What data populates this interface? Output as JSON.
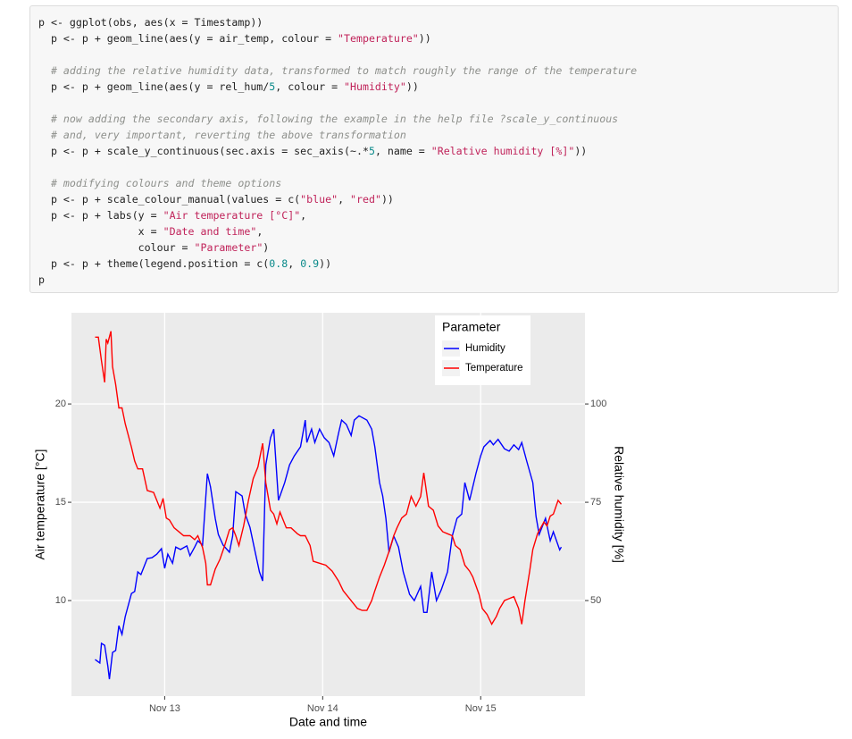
{
  "code": {
    "blocks": [
      [
        "p <- ggplot(obs, aes(x = Timestamp))",
        "  p <- p + geom_line(aes(y = air_temp, colour = \"Temperature\"))"
      ],
      [
        "  # adding the relative humidity data, transformed to match roughly the range of the temperature",
        "  p <- p + geom_line(aes(y = rel_hum/5, colour = \"Humidity\"))"
      ],
      [
        "  # now adding the secondary axis, following the example in the help file ?scale_y_continuous",
        "  # and, very important, reverting the above transformation",
        "  p <- p + scale_y_continuous(sec.axis = sec_axis(~.*5, name = \"Relative humidity [%]\"))"
      ],
      [
        "  # modifying colours and theme options",
        "  p <- p + scale_colour_manual(values = c(\"blue\", \"red\"))",
        "  p <- p + labs(y = \"Air temperature [°C]\",",
        "                x = \"Date and time\",",
        "                colour = \"Parameter\")",
        "  p <- p + theme(legend.position = c(0.8, 0.9))",
        "p"
      ]
    ]
  },
  "chart_data": {
    "type": "line",
    "xlabel": "Date and time",
    "ylabel": "Air temperature [°C]",
    "y2label": "Relative humidity [%]",
    "legend_title": "Parameter",
    "legend_position": "upper right",
    "grid": true,
    "xlim": [
      12.41,
      15.66
    ],
    "xticks": [
      {
        "value": 13,
        "label": "Nov 13"
      },
      {
        "value": 14,
        "label": "Nov 14"
      },
      {
        "value": 15,
        "label": "Nov 15"
      }
    ],
    "ylim": [
      5.14,
      24.64
    ],
    "yticks": [
      10,
      15,
      20
    ],
    "y2lim": [
      25.7,
      123.2
    ],
    "y2ticks": [
      50,
      75,
      100
    ],
    "series": [
      {
        "name": "Humidity",
        "color": "blue",
        "axis": "y2",
        "x": [
          12.56,
          12.59,
          12.6,
          12.62,
          12.64,
          12.65,
          12.67,
          12.69,
          12.71,
          12.73,
          12.75,
          12.79,
          12.81,
          12.83,
          12.85,
          12.89,
          12.92,
          12.95,
          12.98,
          13.0,
          13.02,
          13.05,
          13.07,
          13.1,
          13.14,
          13.16,
          13.19,
          13.21,
          13.24,
          13.27,
          13.29,
          13.32,
          13.34,
          13.37,
          13.41,
          13.43,
          13.45,
          13.49,
          13.51,
          13.54,
          13.57,
          13.6,
          13.62,
          13.64,
          13.67,
          13.69,
          13.72,
          13.76,
          13.79,
          13.82,
          13.86,
          13.89,
          13.9,
          13.93,
          13.95,
          13.98,
          14.01,
          14.04,
          14.07,
          14.1,
          14.12,
          14.15,
          14.18,
          14.2,
          14.23,
          14.28,
          14.31,
          14.33,
          14.36,
          14.38,
          14.4,
          14.42,
          14.45,
          14.48,
          14.51,
          14.55,
          14.58,
          14.62,
          14.64,
          14.66,
          14.69,
          14.72,
          14.75,
          14.79,
          14.82,
          14.85,
          14.88,
          14.9,
          14.93,
          14.97,
          15.0,
          15.02,
          15.06,
          15.08,
          15.11,
          15.15,
          15.18,
          15.21,
          15.24,
          15.26,
          15.29,
          15.33,
          15.35,
          15.37,
          15.41,
          15.44,
          15.46,
          15.5,
          15.51
        ],
        "values": [
          35.0,
          34.1,
          39.1,
          38.6,
          33.4,
          30.0,
          36.8,
          37.3,
          43.6,
          41.4,
          45.9,
          51.8,
          52.3,
          57.3,
          56.6,
          60.7,
          60.9,
          61.8,
          63.2,
          58.2,
          61.8,
          59.5,
          63.6,
          63.0,
          63.9,
          61.4,
          63.6,
          65.2,
          64.1,
          82.3,
          78.9,
          70.9,
          66.8,
          64.1,
          62.3,
          66.4,
          77.7,
          76.6,
          72.0,
          68.6,
          62.9,
          57.3,
          55.0,
          84.5,
          91.4,
          93.6,
          75.5,
          80.0,
          84.5,
          86.8,
          89.1,
          95.9,
          90.2,
          93.6,
          90.2,
          93.6,
          91.4,
          90.2,
          86.8,
          92.5,
          95.9,
          94.8,
          92.0,
          95.9,
          97.0,
          95.9,
          93.6,
          89.1,
          80.0,
          76.6,
          70.9,
          62.3,
          66.4,
          63.6,
          57.3,
          51.6,
          50.0,
          53.6,
          47.0,
          47.0,
          57.3,
          50.0,
          52.7,
          57.3,
          66.4,
          70.9,
          72.0,
          80.0,
          75.5,
          82.3,
          86.8,
          89.1,
          90.7,
          89.6,
          91.0,
          88.6,
          88.0,
          89.6,
          88.4,
          90.2,
          85.7,
          80.0,
          71.4,
          66.8,
          70.9,
          65.2,
          67.5,
          62.9,
          63.6
        ]
      },
      {
        "name": "Temperature",
        "color": "red",
        "x": [
          12.56,
          12.58,
          12.6,
          12.62,
          12.63,
          12.64,
          12.66,
          12.67,
          12.69,
          12.71,
          12.73,
          12.75,
          12.79,
          12.81,
          12.83,
          12.86,
          12.89,
          12.93,
          12.97,
          12.99,
          13.01,
          13.03,
          13.06,
          13.09,
          13.12,
          13.16,
          13.19,
          13.21,
          13.24,
          13.26,
          13.27,
          13.29,
          13.32,
          13.35,
          13.38,
          13.41,
          13.43,
          13.45,
          13.47,
          13.5,
          13.53,
          13.56,
          13.59,
          13.62,
          13.64,
          13.67,
          13.69,
          13.71,
          13.73,
          13.77,
          13.8,
          13.84,
          13.86,
          13.89,
          13.92,
          13.94,
          13.98,
          14.02,
          14.06,
          14.1,
          14.13,
          14.16,
          14.19,
          14.22,
          14.25,
          14.28,
          14.31,
          14.33,
          14.36,
          14.39,
          14.42,
          14.45,
          14.47,
          14.5,
          14.53,
          14.56,
          14.59,
          14.62,
          14.64,
          14.67,
          14.7,
          14.73,
          14.76,
          14.79,
          14.82,
          14.84,
          14.87,
          14.9,
          14.93,
          14.95,
          14.99,
          15.01,
          15.04,
          15.07,
          15.1,
          15.12,
          15.15,
          15.18,
          15.21,
          15.24,
          15.26,
          15.28,
          15.31,
          15.33,
          15.36,
          15.4,
          15.42,
          15.44,
          15.46,
          15.49,
          15.51
        ],
        "values": [
          23.4,
          23.4,
          22.2,
          21.1,
          23.3,
          23.1,
          23.7,
          21.9,
          21.0,
          19.8,
          19.8,
          19.0,
          17.8,
          17.1,
          16.7,
          16.7,
          15.6,
          15.5,
          14.7,
          15.2,
          14.2,
          14.1,
          13.7,
          13.5,
          13.3,
          13.3,
          13.1,
          13.3,
          12.7,
          11.9,
          10.8,
          10.8,
          11.6,
          12.1,
          12.8,
          13.6,
          13.7,
          13.3,
          12.8,
          13.8,
          15.1,
          16.2,
          16.8,
          18.0,
          16.0,
          14.6,
          14.4,
          13.9,
          14.5,
          13.7,
          13.7,
          13.4,
          13.3,
          13.3,
          12.8,
          12.0,
          11.9,
          11.8,
          11.5,
          11.0,
          10.5,
          10.2,
          9.9,
          9.6,
          9.5,
          9.5,
          10.0,
          10.5,
          11.2,
          11.8,
          12.5,
          13.3,
          13.7,
          14.2,
          14.4,
          15.3,
          14.8,
          15.3,
          16.5,
          14.8,
          14.6,
          13.8,
          13.5,
          13.4,
          13.3,
          12.8,
          12.6,
          11.8,
          11.5,
          11.2,
          10.3,
          9.6,
          9.3,
          8.8,
          9.2,
          9.6,
          10.0,
          10.1,
          10.2,
          9.6,
          8.8,
          10.0,
          11.5,
          12.6,
          13.4,
          14.0,
          13.8,
          14.3,
          14.4,
          15.1,
          14.9
        ]
      }
    ]
  }
}
